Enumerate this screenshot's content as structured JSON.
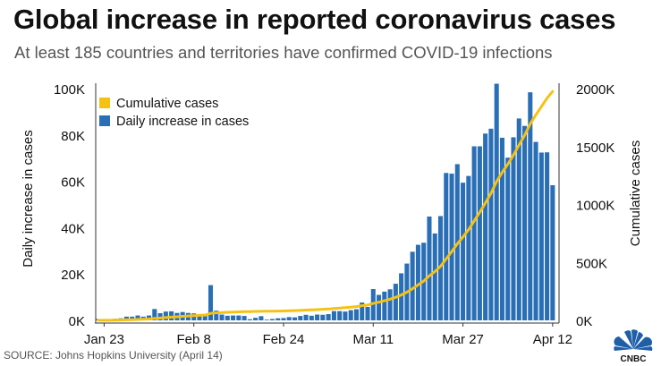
{
  "title": "Global increase in reported coronavirus cases",
  "subtitle": "At least 185 countries and territories have confirmed COVID-19 infections",
  "source": "SOURCE: Johns Hopkins University (April 14)",
  "logo_text": "CNBC",
  "colors": {
    "bar": "#2a6fb5",
    "line": "#f5c213",
    "axis": "#333333",
    "text": "#111111"
  },
  "chart_data": {
    "type": "bar",
    "ylabel": "Daily increase in cases",
    "y2label": "Cumulative cases",
    "ylim": [
      0,
      100000
    ],
    "y2lim": [
      0,
      2000000
    ],
    "yticks": [
      0,
      20000,
      40000,
      60000,
      80000,
      100000
    ],
    "ytick_labels": [
      "0K",
      "20K",
      "40K",
      "60K",
      "80K",
      "100K"
    ],
    "y2ticks": [
      0,
      500000,
      1000000,
      1500000,
      2000000
    ],
    "y2tick_labels": [
      "0K",
      "500K",
      "1000K",
      "1500K",
      "2000K"
    ],
    "xtick_labels": [
      "Jan 23",
      "Feb 8",
      "Feb 24",
      "Mar 11",
      "Mar 27",
      "Apr 12"
    ],
    "xtick_index": [
      1,
      17,
      33,
      49,
      65,
      81
    ],
    "legend_position": "top-left",
    "series": [
      {
        "name": "Cumulative cases",
        "type": "line",
        "axis": "right",
        "values": [
          580,
          850,
          1320,
          2010,
          2900,
          4500,
          6100,
          8200,
          9800,
          11900,
          16800,
          19900,
          23700,
          27600,
          30800,
          34400,
          37600,
          40600,
          43100,
          45200,
          60400,
          64600,
          67100,
          69100,
          71200,
          73300,
          75200,
          75700,
          76800,
          78600,
          78900,
          79500,
          80400,
          81400,
          82800,
          84100,
          86000,
          88400,
          90400,
          92900,
          95300,
          98000,
          102000,
          106000,
          109800,
          114200,
          119000,
          126700,
          132500,
          146000,
          157000,
          169400,
          182800,
          198600,
          218900,
          243400,
          273000,
          305600,
          339100,
          383900,
          421400,
          466400,
          530000,
          593300,
          660700,
          720100,
          782400,
          857500,
          932600,
          1013200,
          1095900,
          1198000,
          1276800,
          1347000,
          1426000,
          1513100,
          1597000,
          1695400,
          1772400,
          1844800,
          1917300,
          1975600
        ]
      },
      {
        "name": "Daily increase in cases",
        "type": "bar",
        "axis": "left",
        "values": [
          580,
          270,
          470,
          690,
          890,
          1600,
          1600,
          2100,
          1600,
          2100,
          4900,
          3100,
          3800,
          3900,
          3200,
          3600,
          3200,
          3000,
          2500,
          2100,
          15200,
          4200,
          2500,
          2000,
          2100,
          2100,
          1900,
          500,
          1100,
          1800,
          300,
          600,
          900,
          1000,
          1400,
          1300,
          1900,
          2400,
          2000,
          2500,
          2400,
          2700,
          4000,
          4000,
          3800,
          4400,
          4800,
          7700,
          5800,
          13500,
          11000,
          12400,
          13400,
          15800,
          20300,
          24500,
          29600,
          32600,
          33500,
          44800,
          37500,
          45000,
          63600,
          63300,
          67400,
          59400,
          62300,
          75100,
          75100,
          80600,
          82700,
          102100,
          78800,
          70200,
          79000,
          87100,
          83900,
          98400,
          77000,
          72400,
          72500,
          58300
        ]
      }
    ]
  }
}
